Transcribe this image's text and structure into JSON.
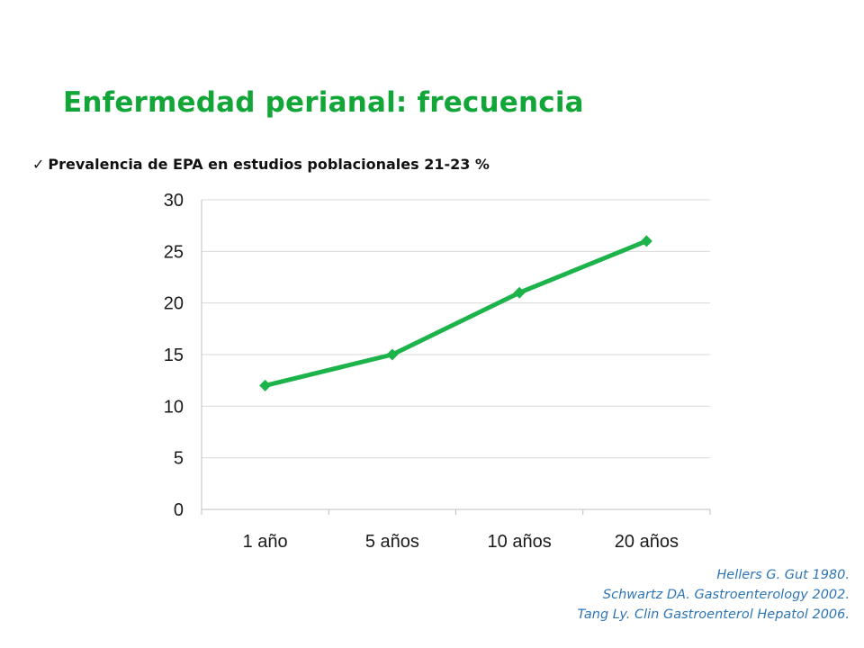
{
  "slide": {
    "title": "Enfermedad perianal: frecuencia",
    "bullet_icon": "checkmark-icon",
    "bullet": "Prevalencia de EPA en estudios poblacionales 21-23 %",
    "references": [
      "Hellers G. Gut 1980.",
      "Schwartz DA. Gastroenterology 2002.",
      "Tang Ly. Clin Gastroenterol Hepatol 2006."
    ]
  },
  "colors": {
    "title": "#12A538",
    "series": "#1DB34B",
    "refs": "#2E75B6"
  },
  "chart_data": {
    "type": "line",
    "categories": [
      "1 año",
      "5 años",
      "10 años",
      "20 años"
    ],
    "series": [
      {
        "values": [
          12,
          15,
          21,
          26
        ]
      }
    ],
    "yticks": [
      "0",
      "5",
      "10",
      "15",
      "20",
      "25",
      "30"
    ],
    "ylim": [
      0,
      30
    ],
    "grid": true,
    "legend": "none",
    "marker": "diamond"
  }
}
